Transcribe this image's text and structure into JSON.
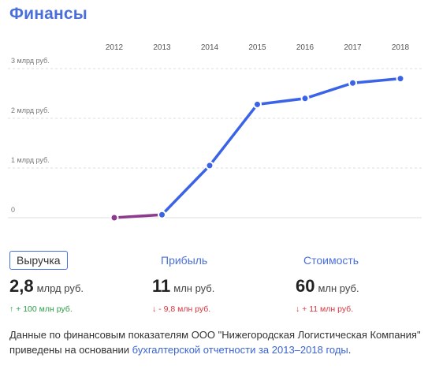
{
  "header": {
    "title": "Финансы"
  },
  "chart_data": {
    "type": "line",
    "x": [
      "2012",
      "2013",
      "2014",
      "2015",
      "2016",
      "2017",
      "2018"
    ],
    "y_tick_labels": [
      "3 млрд руб.",
      "2 млрд руб.",
      "1 млрд руб.",
      "0"
    ],
    "ylim": [
      0,
      3
    ],
    "series": [
      {
        "values": [
          0.0,
          0.06,
          1.05,
          2.28,
          2.4,
          2.71,
          2.8
        ]
      }
    ],
    "colors": {
      "line": "#3a63e8",
      "first_segment": "#8e3a8e",
      "grid": "#dcdcdc"
    }
  },
  "metrics": {
    "revenue": {
      "label": "Выручка",
      "value": "2,8",
      "unit": "млрд руб.",
      "change": "↑ + 100 млн руб."
    },
    "profit": {
      "label": "Прибыль",
      "value": "11",
      "unit": "млн руб.",
      "change": "↓ - 9,8 млн руб."
    },
    "cost": {
      "label": "Стоимость",
      "value": "60",
      "unit": "млн руб.",
      "change": "↓ + 11 млн руб."
    }
  },
  "note": {
    "text": "Данные по финансовым показателям ООО \"Нижегородская Логистическая Компания\" приведены на основании ",
    "link": "бухгалтерской отчетности за 2013–2018 годы",
    "end": "."
  }
}
